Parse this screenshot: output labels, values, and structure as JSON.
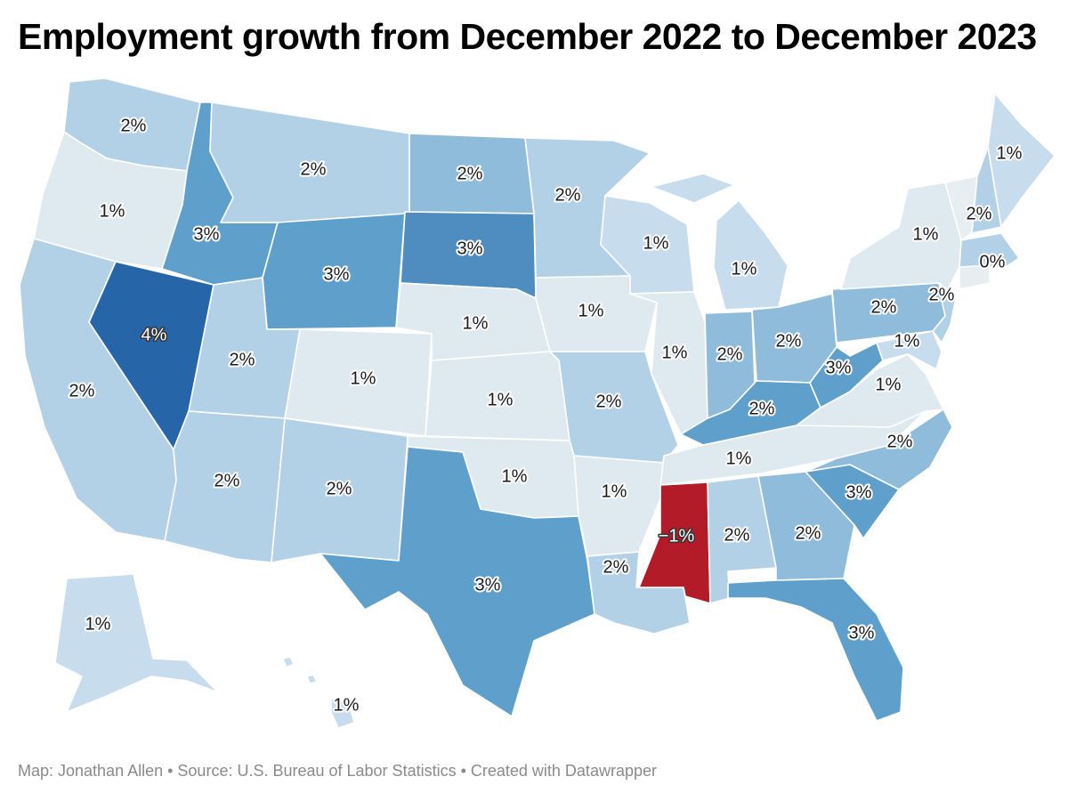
{
  "title": "Employment growth from December 2022 to December 2023",
  "footer": "Map: Jonathan Allen • Source: U.S. Bureau of Labor Statistics • Created with Datawrapper",
  "colors": {
    "-1%": "#b31b29",
    "0%": "#e6eef1",
    "1%": "#dfeaf0",
    "1%b": "#c7dced",
    "2%": "#b3d1e6",
    "2%b": "#8fbcdb",
    "3%": "#5f9fcb",
    "3%b": "#4f8dc0",
    "4%": "#2765a9"
  },
  "states": {
    "WA": {
      "label": "2%"
    },
    "OR": {
      "label": "1%"
    },
    "CA": {
      "label": "2%"
    },
    "NV": {
      "label": "4%"
    },
    "ID": {
      "label": "3%"
    },
    "MT": {
      "label": "2%"
    },
    "WY": {
      "label": "3%"
    },
    "UT": {
      "label": "2%"
    },
    "AZ": {
      "label": "2%"
    },
    "CO": {
      "label": "1%"
    },
    "NM": {
      "label": "2%"
    },
    "ND": {
      "label": "2%"
    },
    "SD": {
      "label": "3%"
    },
    "NE": {
      "label": "1%"
    },
    "KS": {
      "label": "1%"
    },
    "OK": {
      "label": "1%"
    },
    "TX": {
      "label": "3%"
    },
    "MN": {
      "label": "2%"
    },
    "IA": {
      "label": "1%"
    },
    "MO": {
      "label": "2%"
    },
    "AR": {
      "label": "1%"
    },
    "LA": {
      "label": "2%"
    },
    "WI": {
      "label": "1%"
    },
    "IL": {
      "label": "1%"
    },
    "MI": {
      "label": "1%"
    },
    "IN": {
      "label": "2%"
    },
    "OH": {
      "label": "2%"
    },
    "KY": {
      "label": "2%"
    },
    "TN": {
      "label": "1%"
    },
    "MS": {
      "label": "−1%"
    },
    "AL": {
      "label": "2%"
    },
    "GA": {
      "label": "2%"
    },
    "FL": {
      "label": "3%"
    },
    "SC": {
      "label": "3%"
    },
    "NC": {
      "label": "2%"
    },
    "VA": {
      "label": "1%"
    },
    "WV": {
      "label": "3%"
    },
    "PA": {
      "label": "2%"
    },
    "NY": {
      "label": "1%"
    },
    "NJ": {
      "label": "2%"
    },
    "MD": {
      "label": "1%"
    },
    "ME": {
      "label": "1%"
    },
    "NH": {
      "label": "2%"
    },
    "MA": {
      "label": "0%"
    },
    "AK": {
      "label": "1%"
    },
    "HI": {
      "label": "1%"
    }
  }
}
